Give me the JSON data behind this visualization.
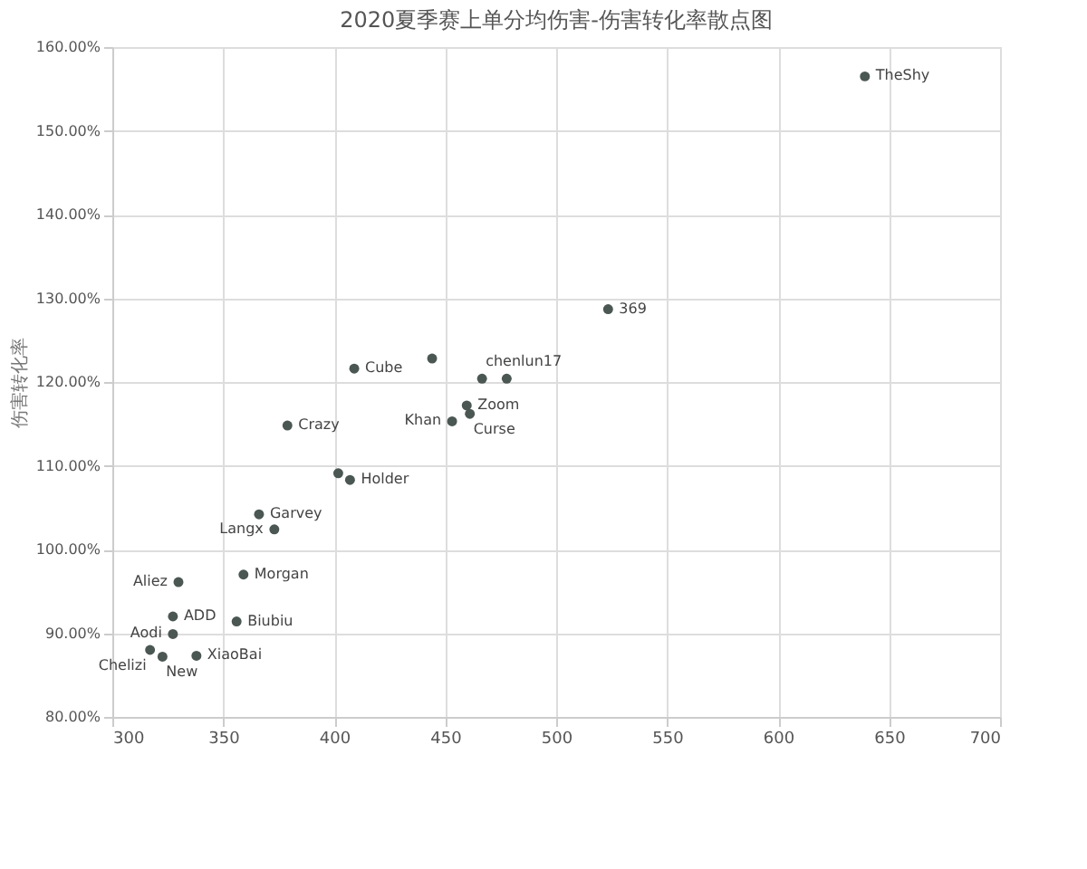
{
  "chart_data": {
    "type": "scatter",
    "title": "2020夏季赛上单分均伤害-伤害转化率散点图",
    "ylabel": "伤害转化率",
    "x": [
      639.1,
      523.4,
      409.0,
      444.1,
      466.6,
      477.7,
      459.7,
      453.1,
      461.1,
      378.9,
      401.8,
      407.1,
      366.1,
      373.0,
      359.1,
      329.8,
      327.3,
      327.3,
      356.0,
      317.0,
      322.6,
      337.9
    ],
    "series": [
      {
        "color": "#4a5753",
        "values": [
          156.5,
          128.7,
          121.6,
          122.8,
          120.4,
          120.4,
          117.2,
          115.3,
          116.2,
          114.8,
          109.1,
          108.3,
          104.2,
          102.4,
          97.0,
          96.1,
          92.0,
          89.9,
          91.4,
          88.0,
          87.2,
          87.3
        ]
      }
    ],
    "annotations": [
      {
        "text": "TheShy",
        "x": 639.1,
        "y": 156.5
      },
      {
        "text": "369",
        "x": 523.4,
        "y": 128.7
      },
      {
        "text": "Cube",
        "x": 409.0,
        "y": 121.6
      },
      {
        "text": "chenlun17",
        "x": 466.6,
        "y": 120.4
      },
      {
        "text": "Zoom",
        "x": 459.7,
        "y": 117.2
      },
      {
        "text": "Khan",
        "x": 453.1,
        "y": 115.3
      },
      {
        "text": "Curse",
        "x": 461.1,
        "y": 116.2
      },
      {
        "text": "Crazy",
        "x": 378.9,
        "y": 114.8
      },
      {
        "text": "Holder",
        "x": 407.1,
        "y": 108.3
      },
      {
        "text": "Garvey",
        "x": 366.1,
        "y": 104.2
      },
      {
        "text": "Langx",
        "x": 373.0,
        "y": 102.4
      },
      {
        "text": "Morgan",
        "x": 359.1,
        "y": 97.0
      },
      {
        "text": "Aliez",
        "x": 329.8,
        "y": 96.1
      },
      {
        "text": "ADD",
        "x": 327.3,
        "y": 92.0
      },
      {
        "text": "Aodi",
        "x": 327.3,
        "y": 89.9
      },
      {
        "text": "Biubiu",
        "x": 356.0,
        "y": 91.4
      },
      {
        "text": "Chelizi",
        "x": 317.0,
        "y": 88.0
      },
      {
        "text": "New",
        "x": 322.6,
        "y": 87.2
      },
      {
        "text": "XiaoBai",
        "x": 337.9,
        "y": 87.3
      }
    ],
    "xlim": [
      300,
      700
    ],
    "xticks": [
      300,
      350,
      400,
      450,
      500,
      550,
      600,
      650,
      700
    ],
    "ylim": [
      80,
      160
    ],
    "yticks": [
      {
        "value": 80,
        "label": "80.00%"
      },
      {
        "value": 90,
        "label": "90.00%"
      },
      {
        "value": 100,
        "label": "100.00%"
      },
      {
        "value": 110,
        "label": "110.00%"
      },
      {
        "value": 120,
        "label": "120.00%"
      },
      {
        "value": 130,
        "label": "130.00%"
      },
      {
        "value": 140,
        "label": "140.00%"
      },
      {
        "value": 150,
        "label": "150.00%"
      },
      {
        "value": 160,
        "label": "160.00%"
      }
    ],
    "grid": true,
    "marker": "circle"
  }
}
